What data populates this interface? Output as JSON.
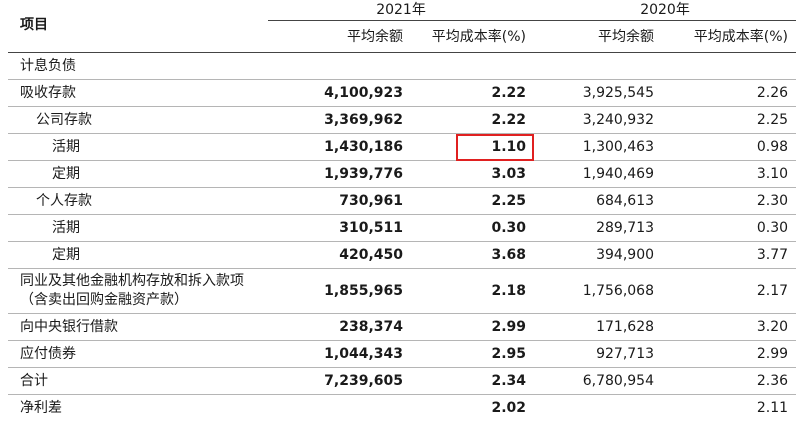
{
  "header": {
    "item_label": "项目",
    "year_2021": "2021年",
    "year_2020": "2020年",
    "col_avg_balance": "平均余额",
    "col_avg_cost_rate": "平均成本率(%)"
  },
  "rows": [
    {
      "label": "计息负债",
      "b2021": "",
      "r2021": "",
      "b2020": "",
      "r2020": ""
    },
    {
      "label": "吸收存款",
      "b2021": "4,100,923",
      "r2021": "2.22",
      "b2020": "3,925,545",
      "r2020": "2.26"
    },
    {
      "label": "公司存款",
      "b2021": "3,369,962",
      "r2021": "2.22",
      "b2020": "3,240,932",
      "r2020": "2.25"
    },
    {
      "label": "活期",
      "b2021": "1,430,186",
      "r2021": "1.10",
      "b2020": "1,300,463",
      "r2020": "0.98"
    },
    {
      "label": "定期",
      "b2021": "1,939,776",
      "r2021": "3.03",
      "b2020": "1,940,469",
      "r2020": "3.10"
    },
    {
      "label": "个人存款",
      "b2021": "730,961",
      "r2021": "2.25",
      "b2020": "684,613",
      "r2020": "2.30"
    },
    {
      "label": "活期",
      "b2021": "310,511",
      "r2021": "0.30",
      "b2020": "289,713",
      "r2020": "0.30"
    },
    {
      "label": "定期",
      "b2021": "420,450",
      "r2021": "3.68",
      "b2020": "394,900",
      "r2020": "3.77"
    },
    {
      "label_line1": "同业及其他金融机构存放和拆入款项",
      "label_line2": "（含卖出回购金融资产款）",
      "b2021": "1,855,965",
      "r2021": "2.18",
      "b2020": "1,756,068",
      "r2020": "2.17"
    },
    {
      "label": "向中央银行借款",
      "b2021": "238,374",
      "r2021": "2.99",
      "b2020": "171,628",
      "r2020": "3.20"
    },
    {
      "label": "应付债券",
      "b2021": "1,044,343",
      "r2021": "2.95",
      "b2020": "927,713",
      "r2020": "2.99"
    },
    {
      "label": "合计",
      "b2021": "7,239,605",
      "r2021": "2.34",
      "b2020": "6,780,954",
      "r2020": "2.36"
    },
    {
      "label": "净利差",
      "b2021": "",
      "r2021": "2.02",
      "b2020": "",
      "r2020": "2.11"
    }
  ],
  "highlight_color": "#e02020"
}
